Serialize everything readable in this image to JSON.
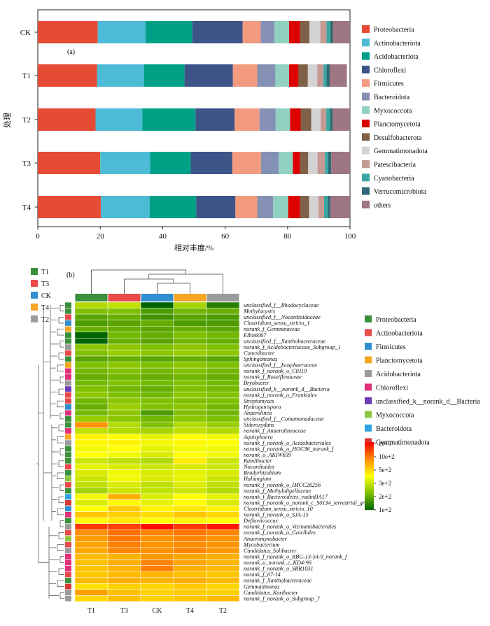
{
  "chart_data": [
    {
      "type": "bar",
      "orientation": "horizontal",
      "stacked": true,
      "panel_label": "(a)",
      "xlabel": "相对丰度/%",
      "ylabel": "处理",
      "xlim": [
        0,
        100
      ],
      "xticks": [
        0,
        20,
        40,
        60,
        80,
        100
      ],
      "legend_position": "right",
      "categories": [
        "CK",
        "T1",
        "T2",
        "T3",
        "T4"
      ],
      "series": [
        {
          "name": "Proteobacteria",
          "color": "#e64b35",
          "values": [
            19.2,
            19.0,
            18.5,
            20.0,
            20.2
          ]
        },
        {
          "name": "Actinobacteriota",
          "color": "#4dbbd5",
          "values": [
            15.3,
            15.0,
            15.0,
            16.0,
            15.6
          ]
        },
        {
          "name": "Acidobacteriota",
          "color": "#00a087",
          "values": [
            15.0,
            13.0,
            17.0,
            13.0,
            14.9
          ]
        },
        {
          "name": "Chloroflexi",
          "color": "#3c5488",
          "values": [
            16.1,
            15.5,
            12.5,
            13.3,
            12.6
          ]
        },
        {
          "name": "Firmicutes",
          "color": "#f39b7f",
          "values": [
            5.8,
            7.8,
            8.0,
            9.2,
            7.0
          ]
        },
        {
          "name": "Bacteroidota",
          "color": "#8491b4",
          "values": [
            4.4,
            5.8,
            5.2,
            5.7,
            5.1
          ]
        },
        {
          "name": "Myxococcota",
          "color": "#91d1c2",
          "values": [
            4.7,
            4.4,
            4.6,
            4.5,
            4.8
          ]
        },
        {
          "name": "Planctomycetota",
          "color": "#dc0000",
          "values": [
            3.5,
            3.0,
            3.4,
            2.3,
            3.8
          ]
        },
        {
          "name": "Desulfobacterota",
          "color": "#7e6148",
          "values": [
            3.0,
            3.0,
            3.4,
            2.6,
            2.9
          ]
        },
        {
          "name": "Gemmatimonadota",
          "color": "#d3d3d3",
          "values": [
            3.5,
            3.0,
            3.0,
            3.0,
            3.0
          ]
        },
        {
          "name": "Patescibacteria",
          "color": "#c59a93",
          "values": [
            2.0,
            2.0,
            1.8,
            2.4,
            1.8
          ]
        },
        {
          "name": "Cyanobacteria",
          "color": "#3aa7a3",
          "values": [
            1.2,
            1.0,
            1.2,
            1.0,
            1.2
          ]
        },
        {
          "name": "Verrucomicrobiota",
          "color": "#2f6b75",
          "values": [
            0.8,
            1.0,
            0.8,
            1.0,
            0.8
          ]
        },
        {
          "name": "others",
          "color": "#9e7583",
          "values": [
            5.5,
            5.5,
            5.6,
            6.0,
            6.3
          ]
        }
      ]
    },
    {
      "type": "heatmap",
      "panel_label": "(b)",
      "columns": [
        "T1",
        "T3",
        "CK",
        "T4",
        "T2"
      ],
      "column_colors": [
        "#3a8f3a",
        "#e84a4a",
        "#2f8fd0",
        "#f5a623",
        "#9a9a9a"
      ],
      "column_legend": [
        {
          "name": "T1",
          "color": "#3a8f3a"
        },
        {
          "name": "T3",
          "color": "#e84a4a"
        },
        {
          "name": "CK",
          "color": "#2f8fd0"
        },
        {
          "name": "T4",
          "color": "#f5a623"
        },
        {
          "name": "T2",
          "color": "#9a9a9a"
        }
      ],
      "row_legend": [
        {
          "name": "Proteobacteria",
          "color": "#3a8f3a"
        },
        {
          "name": "Actinobacteriota",
          "color": "#e84a4a"
        },
        {
          "name": "Firmicutes",
          "color": "#2f8fd0"
        },
        {
          "name": "Planctomycetota",
          "color": "#f5a623"
        },
        {
          "name": "Acidobacteriota",
          "color": "#9a9a9a"
        },
        {
          "name": "Chloroflexi",
          "color": "#e0307a"
        },
        {
          "name": "unclassified_k__norank_d__Bacteria",
          "color": "#6a3fb5"
        },
        {
          "name": "Myxococcota",
          "color": "#8cc63f"
        },
        {
          "name": "Bacteroidota",
          "color": "#2aa3e0"
        },
        {
          "name": "Gemmatimonadota",
          "color": "#d93636"
        }
      ],
      "colorbar": {
        "labels": [
          "2e+3",
          "10e+2",
          "5e+2",
          "3e+2",
          "2e+2",
          "1e+2"
        ]
      },
      "rows": [
        {
          "label": "unclassified_f__Rhodocyclaceae",
          "group": 0,
          "values": [
            1.7,
            1.75,
            1.0,
            1.65,
            1.15
          ]
        },
        {
          "label": "Methylocystis",
          "group": 0,
          "values": [
            1.5,
            1.5,
            1.3,
            1.45,
            1.4
          ]
        },
        {
          "label": "unclassified_f__Nocardioidaceae",
          "group": 1,
          "values": [
            1.35,
            1.4,
            1.25,
            1.35,
            1.3
          ]
        },
        {
          "label": "Clostridium_sensu_stricto_1",
          "group": 2,
          "values": [
            1.3,
            1.35,
            1.4,
            1.3,
            1.3
          ]
        },
        {
          "label": "norank_f_Gemmataceae",
          "group": 3,
          "values": [
            1.4,
            1.4,
            1.35,
            1.4,
            1.35
          ]
        },
        {
          "label": "Ellin6067",
          "group": 0,
          "values": [
            0.8,
            1.45,
            1.4,
            1.5,
            1.45
          ]
        },
        {
          "label": "unclassified_f__Xanthobacteraceae",
          "group": 0,
          "values": [
            0.8,
            1.4,
            1.35,
            1.45,
            1.4
          ]
        },
        {
          "label": "norank_f_Acidobacteriaceae_Subgroup_1",
          "group": 4,
          "values": [
            1.55,
            1.55,
            1.5,
            1.55,
            1.5
          ]
        },
        {
          "label": "Conexibacter",
          "group": 1,
          "values": [
            1.5,
            1.6,
            1.55,
            1.6,
            1.55
          ]
        },
        {
          "label": "Sphingomonas",
          "group": 0,
          "values": [
            1.35,
            1.4,
            1.35,
            1.4,
            1.35
          ]
        },
        {
          "label": "unclassified_f__Isosphaeraceae",
          "group": 3,
          "values": [
            1.5,
            1.55,
            1.5,
            1.55,
            1.5
          ]
        },
        {
          "label": "norank_f_norank_o_C0119",
          "group": 5,
          "values": [
            1.45,
            1.5,
            1.45,
            1.5,
            1.45
          ]
        },
        {
          "label": "norank_f_Roseiflexaceae",
          "group": 5,
          "values": [
            1.4,
            1.45,
            1.4,
            1.45,
            1.4
          ]
        },
        {
          "label": "Bryobacter",
          "group": 4,
          "values": [
            1.45,
            1.5,
            1.45,
            1.5,
            1.45
          ]
        },
        {
          "label": "unclassified_k__norank_d__Bacteria",
          "group": 6,
          "values": [
            1.5,
            1.45,
            1.4,
            1.5,
            1.45
          ]
        },
        {
          "label": "norank_f_norank_o_Frankiales",
          "group": 1,
          "values": [
            1.55,
            1.5,
            1.45,
            1.55,
            1.5
          ]
        },
        {
          "label": "Streptomyces",
          "group": 1,
          "values": [
            1.45,
            1.55,
            1.5,
            1.5,
            1.5
          ]
        },
        {
          "label": "Hydrogenispora",
          "group": 2,
          "values": [
            1.4,
            1.6,
            1.5,
            1.55,
            1.45
          ]
        },
        {
          "label": "Anaerolinea",
          "group": 5,
          "values": [
            1.45,
            1.55,
            1.3,
            1.5,
            1.45
          ]
        },
        {
          "label": "unclassified_f__Comamonadaceae",
          "group": 0,
          "values": [
            1.6,
            1.55,
            1.45,
            1.55,
            1.5
          ]
        },
        {
          "label": "Sideroxydans",
          "group": 0,
          "values": [
            2.95,
            1.7,
            1.5,
            1.7,
            1.6
          ]
        },
        {
          "label": "norank_f_Anaerolineaceae",
          "group": 5,
          "values": [
            1.75,
            1.7,
            1.65,
            1.75,
            1.7
          ]
        },
        {
          "label": "Aquisphaera",
          "group": 3,
          "values": [
            2.1,
            2.0,
            1.9,
            2.0,
            1.95
          ]
        },
        {
          "label": "norank_f_norank_o_Acidobacteriales",
          "group": 4,
          "values": [
            2.05,
            2.1,
            1.95,
            2.05,
            2.0
          ]
        },
        {
          "label": "norank_f_norank_o_HOC36_norank_f",
          "group": 0,
          "values": [
            1.95,
            2.0,
            1.9,
            1.95,
            1.95
          ]
        },
        {
          "label": "norank_o_AKIW659",
          "group": 0,
          "values": [
            2.0,
            1.95,
            1.85,
            2.0,
            1.95
          ]
        },
        {
          "label": "Ramlibacter",
          "group": 0,
          "values": [
            1.8,
            1.75,
            1.7,
            2.15,
            1.8
          ]
        },
        {
          "label": "Nocardioides",
          "group": 1,
          "values": [
            1.9,
            1.85,
            1.8,
            1.85,
            1.8
          ]
        },
        {
          "label": "Bradyrhizobium",
          "group": 0,
          "values": [
            1.85,
            1.95,
            1.85,
            1.9,
            1.85
          ]
        },
        {
          "label": "Haliangium",
          "group": 7,
          "values": [
            1.8,
            1.95,
            1.85,
            1.9,
            1.8
          ]
        },
        {
          "label": "norank_f_norank_o_IMCC26256",
          "group": 1,
          "values": [
            1.75,
            1.85,
            1.75,
            1.85,
            1.75
          ]
        },
        {
          "label": "norank_f_Methyloligellaceae",
          "group": 0,
          "values": [
            1.65,
            1.8,
            1.75,
            1.8,
            1.7
          ]
        },
        {
          "label": "norank_f_Bacteroidetes_vadinHA17",
          "group": 8,
          "values": [
            1.95,
            2.7,
            1.85,
            2.0,
            1.9
          ]
        },
        {
          "label": "norank_f_norank_o_norank_c_S0134_terrestrial_group",
          "group": 9,
          "values": [
            1.85,
            2.05,
            1.9,
            2.0,
            1.85
          ]
        },
        {
          "label": "Clostridium_sensu_stricto_10",
          "group": 2,
          "values": [
            2.0,
            2.45,
            2.1,
            2.2,
            2.1
          ]
        },
        {
          "label": "norank_f_norank_o_SJA-15",
          "group": 5,
          "values": [
            2.5,
            2.4,
            2.3,
            2.5,
            2.35
          ]
        },
        {
          "label": "Defluviicoccus",
          "group": 0,
          "values": [
            2.05,
            2.2,
            2.0,
            2.1,
            2.0
          ]
        },
        {
          "label": "norank_f_norank_o_Vicinamibacterales",
          "group": 4,
          "values": [
            3.6,
            3.55,
            3.9,
            3.6,
            3.85
          ]
        },
        {
          "label": "norank_f_norank_o_Gaiellales",
          "group": 1,
          "values": [
            2.95,
            3.2,
            3.05,
            3.15,
            3.05
          ]
        },
        {
          "label": "Anaeromyxobacter",
          "group": 7,
          "values": [
            2.85,
            3.15,
            2.95,
            3.05,
            2.95
          ]
        },
        {
          "label": "Mycobacterium",
          "group": 1,
          "values": [
            2.8,
            3.1,
            2.95,
            3.0,
            2.95
          ]
        },
        {
          "label": "Candidatus_Solibacter",
          "group": 4,
          "values": [
            2.75,
            3.05,
            2.95,
            3.05,
            2.9
          ]
        },
        {
          "label": "norank_f_norank_o_RBG-13-54-9_norank_f",
          "group": 5,
          "values": [
            2.6,
            2.65,
            2.9,
            2.75,
            2.7
          ]
        },
        {
          "label": "norank_o_norank_c_KD4-96",
          "group": 5,
          "values": [
            2.55,
            2.7,
            3.05,
            2.8,
            2.65
          ]
        },
        {
          "label": "norank_f_norank_o_SBR1031",
          "group": 5,
          "values": [
            2.5,
            2.65,
            3.1,
            2.7,
            2.6
          ]
        },
        {
          "label": "norank_f_67-14",
          "group": 1,
          "values": [
            2.5,
            2.6,
            2.65,
            2.55,
            2.5
          ]
        },
        {
          "label": "norank_f_Xanthobacteraceae",
          "group": 0,
          "values": [
            2.6,
            2.7,
            2.65,
            2.7,
            2.6
          ]
        },
        {
          "label": "Gemmatimonas",
          "group": 9,
          "values": [
            2.25,
            2.4,
            2.35,
            2.45,
            2.35
          ]
        },
        {
          "label": "Candidatus_Koribacter",
          "group": 4,
          "values": [
            2.85,
            2.55,
            2.4,
            2.45,
            2.4
          ]
        },
        {
          "label": "norank_f_norank_o_Subgroup_7",
          "group": 4,
          "values": [
            2.35,
            2.55,
            2.4,
            2.5,
            2.6
          ]
        }
      ]
    }
  ]
}
